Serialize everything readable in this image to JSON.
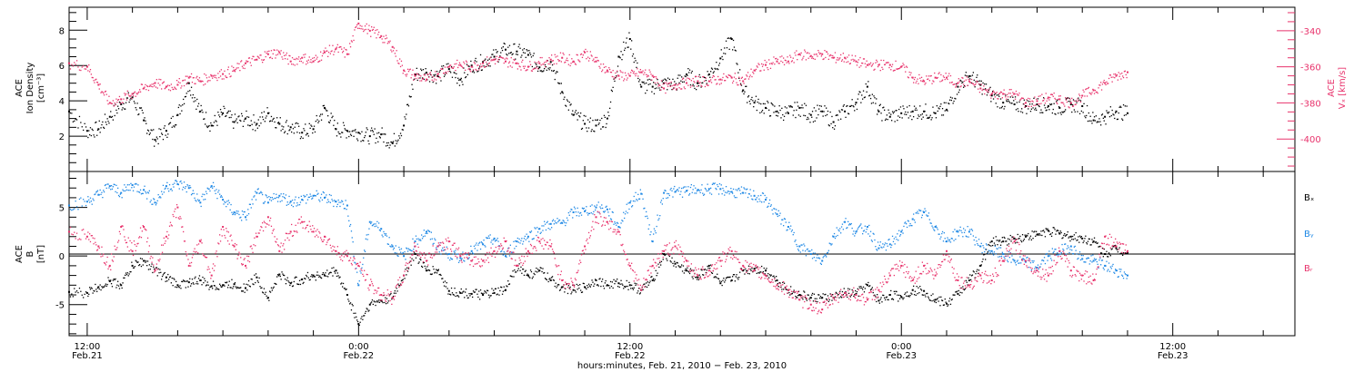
{
  "colors": {
    "density": "#000000",
    "speed": "#e8336c",
    "bx": "#000000",
    "by": "#1e88e5",
    "bz": "#e8336c",
    "axis": "#000000"
  },
  "x_axis": {
    "title": "hours:minutes, Feb. 21, 2010 − Feb. 23, 2010",
    "ticks": [
      {
        "hour": 12,
        "time": "12:00",
        "date": "Feb.21"
      },
      {
        "hour": 24,
        "time": "0:00",
        "date": "Feb.22"
      },
      {
        "hour": 36,
        "time": "12:00",
        "date": "Feb.22"
      },
      {
        "hour": 48,
        "time": "0:00",
        "date": "Feb.23"
      },
      {
        "hour": 60,
        "time": "12:00",
        "date": "Feb.23"
      }
    ]
  },
  "chart_data": [
    {
      "type": "scatter",
      "panel": "top",
      "left_ylabel_lines": [
        "ACE",
        "Ion Density",
        "[cm⁻³]"
      ],
      "right_ylabel_lines": [
        "ACE",
        "Vₓ [km/s]"
      ],
      "xlim_hours": [
        11.2,
        65.4
      ],
      "ylim_left": [
        0,
        9.3
      ],
      "ylim_right": [
        -418,
        -327
      ],
      "left_ticks": [
        "2",
        "4",
        "6",
        "8"
      ],
      "right_ticks": [
        "-340",
        "-360",
        "-380",
        "-400"
      ],
      "series": [
        {
          "axis": "left",
          "color_key": "density",
          "x": [
            11.2,
            12,
            12.5,
            13,
            13.5,
            14,
            14.5,
            15,
            15.5,
            16,
            16.5,
            17,
            17.5,
            18,
            18.5,
            19,
            19.5,
            20,
            20.5,
            21,
            21.5,
            22,
            22.5,
            23,
            23.5,
            24,
            24.5,
            25,
            25.5,
            26,
            26.5,
            27,
            27.5,
            28,
            28.5,
            29,
            29.5,
            30,
            30.5,
            31,
            31.5,
            32,
            32.5,
            33,
            33.5,
            34,
            34.5,
            35,
            35.5,
            36,
            36.5,
            37,
            37.5,
            38,
            38.5,
            39,
            39.5,
            40,
            40.5,
            41,
            41.5,
            42,
            42.5,
            43,
            43.5,
            44,
            44.5,
            45,
            45.5,
            46,
            46.5,
            47,
            47.5,
            48,
            48.5,
            49,
            49.5,
            50,
            50.5,
            51,
            51.5,
            52,
            52.5,
            53,
            53.5,
            54,
            54.5,
            55,
            55.5,
            56,
            56.5,
            57,
            57.5,
            58
          ],
          "y": [
            3.4,
            2.3,
            2.4,
            3.1,
            3.8,
            4.2,
            2.9,
            1.8,
            2.3,
            3.2,
            5.0,
            3.4,
            2.6,
            3.3,
            2.8,
            3.0,
            2.7,
            3.3,
            2.7,
            2.5,
            2.2,
            2.4,
            3.6,
            2.4,
            2.3,
            2.2,
            2.0,
            2.1,
            1.6,
            2.6,
            5.5,
            5.6,
            5.4,
            5.8,
            5.2,
            6.0,
            6.2,
            6.5,
            6.9,
            6.8,
            6.6,
            5.9,
            6.2,
            4.5,
            3.2,
            2.7,
            2.6,
            3.0,
            6.5,
            7.5,
            4.8,
            4.8,
            5.0,
            4.9,
            5.5,
            5.0,
            5.5,
            6.4,
            7.5,
            4.6,
            3.9,
            3.6,
            3.4,
            3.3,
            3.6,
            3.2,
            3.4,
            2.8,
            3.4,
            3.9,
            4.8,
            3.4,
            3.1,
            3.3,
            3.4,
            3.4,
            3.3,
            3.5,
            4.8,
            5.4,
            4.9,
            4.3,
            3.9,
            3.8,
            3.7,
            3.8,
            3.7,
            3.6,
            3.8,
            3.7,
            2.9,
            3.1,
            3.4,
            3.3
          ]
        },
        {
          "axis": "right",
          "color_key": "speed",
          "x": [
            11.2,
            12,
            12.5,
            13,
            13.5,
            14,
            14.5,
            15,
            15.5,
            16,
            16.5,
            17,
            17.5,
            18,
            18.5,
            19,
            19.5,
            20,
            20.5,
            21,
            21.5,
            22,
            22.5,
            23,
            23.5,
            24,
            24.5,
            25,
            25.5,
            26,
            26.5,
            27,
            27.5,
            28,
            28.5,
            29,
            29.5,
            30,
            30.5,
            31,
            31.5,
            32,
            32.5,
            33,
            33.5,
            34,
            34.5,
            35,
            35.5,
            36,
            36.5,
            37,
            37.5,
            38,
            38.5,
            39,
            39.5,
            40,
            40.5,
            41,
            41.5,
            42,
            42.5,
            43,
            43.5,
            44,
            44.5,
            45,
            45.5,
            46,
            46.5,
            47,
            47.5,
            48,
            48.5,
            49,
            49.5,
            50,
            50.5,
            51,
            51.5,
            52,
            52.5,
            53,
            53.5,
            54,
            54.5,
            55,
            55.5,
            56,
            56.5,
            57,
            57.5,
            58
          ],
          "y": [
            -358,
            -360,
            -370,
            -380,
            -378,
            -375,
            -372,
            -369,
            -371,
            -370,
            -366,
            -368,
            -365,
            -364,
            -362,
            -358,
            -356,
            -353,
            -352,
            -357,
            -355,
            -357,
            -352,
            -350,
            -353,
            -336,
            -340,
            -343,
            -349,
            -362,
            -365,
            -367,
            -364,
            -360,
            -359,
            -360,
            -358,
            -356,
            -357,
            -358,
            -360,
            -358,
            -356,
            -355,
            -357,
            -352,
            -357,
            -362,
            -365,
            -365,
            -363,
            -365,
            -372,
            -370,
            -369,
            -368,
            -368,
            -367,
            -366,
            -368,
            -362,
            -359,
            -357,
            -357,
            -353,
            -354,
            -353,
            -355,
            -355,
            -357,
            -359,
            -359,
            -359,
            -360,
            -366,
            -368,
            -366,
            -366,
            -369,
            -368,
            -372,
            -375,
            -375,
            -375,
            -380,
            -379,
            -377,
            -378,
            -380,
            -376,
            -373,
            -369,
            -365,
            -363
          ]
        }
      ]
    },
    {
      "type": "scatter",
      "panel": "bottom",
      "left_ylabel_lines": [
        "ACE",
        "B",
        "[nT]"
      ],
      "xlim_hours": [
        11.2,
        65.4
      ],
      "ylim": [
        -8.2,
        8.7
      ],
      "ticks": [
        "-5",
        "0",
        "5"
      ],
      "zero_line": true,
      "legend": [
        "Bₓ",
        "Bᵧ",
        "Bᵣ"
      ],
      "legend_position": "right",
      "series": [
        {
          "name": "Bx",
          "color_key": "bx",
          "x": [
            11.2,
            12,
            12.5,
            13,
            13.5,
            14,
            14.5,
            15,
            15.5,
            16,
            16.5,
            17,
            17.5,
            18,
            18.5,
            19,
            19.5,
            20,
            20.5,
            21,
            21.5,
            22,
            22.5,
            23,
            23.5,
            24,
            24.5,
            25,
            25.5,
            26,
            26.5,
            27,
            27.5,
            28,
            28.5,
            29,
            29.5,
            30,
            30.5,
            31,
            31.5,
            32,
            32.5,
            33,
            33.5,
            34,
            34.5,
            35,
            35.5,
            36,
            36.5,
            37,
            37.5,
            38,
            38.5,
            39,
            39.5,
            40,
            40.5,
            41,
            41.5,
            42,
            42.5,
            43,
            43.5,
            44,
            44.5,
            45,
            45.5,
            46,
            46.5,
            47,
            47.5,
            48,
            48.5,
            49,
            49.5,
            50,
            50.5,
            51,
            51.5,
            52,
            52.5,
            53,
            53.5,
            54,
            54.5,
            55,
            55.5,
            56,
            56.5,
            57,
            57.5,
            58
          ],
          "y": [
            -3.7,
            -3.8,
            -3.2,
            -2.6,
            -3.0,
            -1.0,
            -0.5,
            -1.5,
            -2.2,
            -3.0,
            -2.7,
            -2.5,
            -3.1,
            -3.0,
            -2.9,
            -3.3,
            -2.2,
            -4.3,
            -1.9,
            -2.8,
            -2.4,
            -2.0,
            -2.0,
            -1.5,
            -4.0,
            -7.0,
            -5.0,
            -4.6,
            -4.3,
            -2.0,
            0.2,
            -1.5,
            -1.5,
            -3.6,
            -3.8,
            -3.9,
            -4.0,
            -3.8,
            -3.5,
            -1.0,
            -2.0,
            -1.5,
            -2.5,
            -3.2,
            -3.5,
            -3.2,
            -2.5,
            -3.0,
            -2.8,
            -3.0,
            -3.5,
            -2.5,
            0.2,
            -0.8,
            -1.5,
            -2.2,
            -1.0,
            -2.8,
            -2.5,
            -1.5,
            -1.3,
            -1.5,
            -2.5,
            -3.5,
            -4.0,
            -4.3,
            -4.3,
            -4.3,
            -3.8,
            -3.9,
            -3.0,
            -4.6,
            -4.0,
            -4.2,
            -3.5,
            -3.6,
            -4.5,
            -4.9,
            -3.9,
            -2.5,
            -1.0,
            1.5,
            1.5,
            1.8,
            2.0,
            2.2,
            2.6,
            2.3,
            2.0,
            1.8,
            1.5,
            0.2,
            0.8,
            0.3
          ]
        },
        {
          "name": "By",
          "color_key": "by",
          "x": [
            11.2,
            12,
            12.5,
            13,
            13.5,
            14,
            14.5,
            15,
            15.5,
            16,
            16.5,
            17,
            17.5,
            18,
            18.5,
            19,
            19.5,
            20,
            20.5,
            21,
            21.5,
            22,
            22.5,
            23,
            23.5,
            24,
            24.5,
            25,
            25.5,
            26,
            26.5,
            27,
            27.5,
            28,
            28.5,
            29,
            29.5,
            30,
            30.5,
            31,
            31.5,
            32,
            32.5,
            33,
            33.5,
            34,
            34.5,
            35,
            35.5,
            36,
            36.5,
            37,
            37.5,
            38,
            38.5,
            39,
            39.5,
            40,
            40.5,
            41,
            41.5,
            42,
            42.5,
            43,
            43.5,
            44,
            44.5,
            45,
            45.5,
            46,
            46.5,
            47,
            47.5,
            48,
            48.5,
            49,
            49.5,
            50,
            50.5,
            51,
            51.5,
            52,
            52.5,
            53,
            53.5,
            54,
            54.5,
            55,
            55.5,
            56,
            56.5,
            57,
            57.5,
            58
          ],
          "y": [
            5.2,
            5.6,
            6.3,
            7.2,
            6.5,
            7.3,
            6.8,
            5.5,
            7.2,
            7.4,
            7.0,
            5.5,
            7.2,
            5.8,
            4.5,
            4.0,
            6.5,
            5.5,
            6.2,
            5.6,
            5.8,
            6.2,
            6.0,
            5.6,
            5.2,
            -3.0,
            3.5,
            2.8,
            1.0,
            0.0,
            1.5,
            2.5,
            1.0,
            0.2,
            -0.2,
            0.5,
            1.2,
            1.8,
            0.0,
            1.5,
            2.0,
            2.8,
            3.3,
            3.4,
            4.5,
            4.6,
            5.0,
            4.8,
            3.0,
            5.5,
            6.4,
            1.5,
            6.5,
            6.6,
            6.7,
            6.8,
            6.9,
            6.9,
            6.6,
            6.5,
            6.2,
            5.8,
            4.3,
            3.0,
            1.0,
            0.2,
            -0.5,
            2.0,
            3.5,
            2.5,
            3.0,
            0.8,
            1.2,
            2.5,
            3.8,
            4.5,
            3.0,
            1.5,
            2.5,
            2.5,
            1.0,
            0.5,
            0.2,
            -0.5,
            -0.6,
            -1.2,
            0.0,
            0.5,
            1.0,
            -0.3,
            -0.5,
            -1.0,
            -1.5,
            -2.0
          ]
        },
        {
          "name": "Bz",
          "color_key": "bz",
          "x": [
            11.2,
            12,
            12.5,
            13,
            13.5,
            14,
            14.5,
            15,
            15.5,
            16,
            16.5,
            17,
            17.5,
            18,
            18.5,
            19,
            19.5,
            20,
            20.5,
            21,
            21.5,
            22,
            22.5,
            23,
            23.5,
            24,
            24.5,
            25,
            25.5,
            26,
            26.5,
            27,
            27.5,
            28,
            28.5,
            29,
            29.5,
            30,
            30.5,
            31,
            31.5,
            32,
            32.5,
            33,
            33.5,
            34,
            34.5,
            35,
            35.5,
            36,
            36.5,
            37,
            37.5,
            38,
            38.5,
            39,
            39.5,
            40,
            40.5,
            41,
            41.5,
            42,
            42.5,
            43,
            43.5,
            44,
            44.5,
            45,
            45.5,
            46,
            46.5,
            47,
            47.5,
            48,
            48.5,
            49,
            49.5,
            50,
            50.5,
            51,
            51.5,
            52,
            52.5,
            53,
            53.5,
            54,
            54.5,
            55,
            55.5,
            56,
            56.5,
            57,
            57.5,
            58
          ],
          "y": [
            2.5,
            2.0,
            1.0,
            -1.0,
            3.0,
            0.5,
            3.0,
            -1.5,
            2.0,
            5.0,
            -1.0,
            1.5,
            -2.0,
            3.0,
            1.0,
            -1.0,
            2.0,
            4.0,
            0.5,
            2.5,
            3.5,
            2.5,
            2.0,
            0.5,
            0.0,
            -1.0,
            -3.0,
            -4.0,
            -4.3,
            -2.0,
            1.0,
            -0.5,
            1.0,
            1.5,
            0.0,
            -0.5,
            -0.5,
            0.5,
            1.5,
            -1.0,
            0.5,
            1.5,
            1.0,
            -2.5,
            -3.0,
            1.0,
            4.0,
            3.5,
            2.5,
            -1.0,
            -3.5,
            -1.0,
            0.5,
            1.0,
            -0.5,
            -2.0,
            -1.5,
            -0.5,
            0.5,
            -1.0,
            -1.5,
            -2.0,
            -3.0,
            -3.5,
            -4.5,
            -5.0,
            -5.5,
            -4.3,
            -3.8,
            -4.0,
            -4.5,
            -3.5,
            -2.0,
            -1.0,
            -2.5,
            -1.0,
            -2.0,
            0.5,
            -2.5,
            -3.0,
            -2.0,
            -2.5,
            -0.5,
            1.5,
            -0.5,
            -1.5,
            -2.0,
            0.5,
            -1.5,
            -2.0,
            -2.5,
            2.0,
            1.0,
            0.5
          ]
        }
      ]
    }
  ]
}
